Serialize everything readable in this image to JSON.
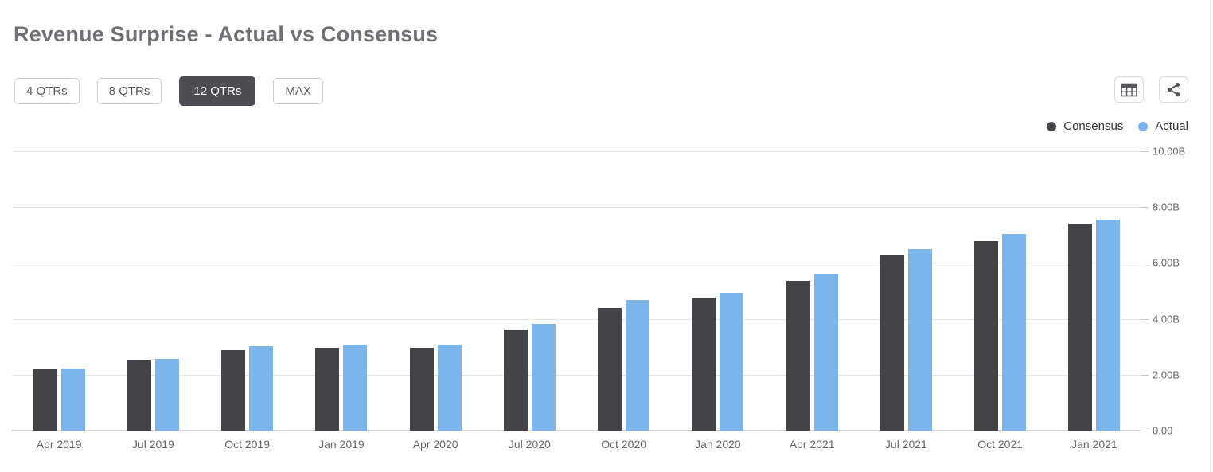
{
  "header": {
    "title": "Revenue Surprise - Actual vs Consensus"
  },
  "toolbar": {
    "range_buttons": [
      {
        "label": "4 QTRs",
        "selected": false
      },
      {
        "label": "8 QTRs",
        "selected": false
      },
      {
        "label": "12 QTRs",
        "selected": true
      },
      {
        "label": "MAX",
        "selected": false
      }
    ],
    "icons": [
      "data-table",
      "share"
    ]
  },
  "colors": {
    "consensus": "#434348",
    "actual": "#7cb5ec",
    "selected_button_bg": "#4d4d52",
    "grid": "#e6e6e6",
    "axis_text": "#666666"
  },
  "chart_data": {
    "type": "bar",
    "title": "Revenue Surprise - Actual vs Consensus",
    "categories": [
      "Apr 2019",
      "Jul 2019",
      "Oct 2019",
      "Jan 2019",
      "Apr 2020",
      "Jul 2020",
      "Oct 2020",
      "Jan 2020",
      "Apr 2021",
      "Jul 2021",
      "Oct 2021",
      "Jan 2021"
    ],
    "series": [
      {
        "name": "Consensus",
        "color": "#434348",
        "values": [
          2.18,
          2.53,
          2.88,
          2.96,
          2.95,
          3.63,
          4.4,
          4.76,
          5.36,
          6.29,
          6.77,
          7.41
        ]
      },
      {
        "name": "Actual",
        "color": "#7cb5ec",
        "values": [
          2.22,
          2.57,
          3.01,
          3.07,
          3.07,
          3.82,
          4.67,
          4.94,
          5.6,
          6.49,
          7.04,
          7.56
        ]
      }
    ],
    "value_unit": "B",
    "ylim": [
      0,
      10
    ],
    "yticks": [
      {
        "value": 10,
        "label": "10.00B"
      },
      {
        "value": 8,
        "label": "8.00B"
      },
      {
        "value": 6,
        "label": "6.00B"
      },
      {
        "value": 4,
        "label": "4.00B"
      },
      {
        "value": 2,
        "label": "2.00B"
      },
      {
        "value": 0,
        "label": "0.00"
      }
    ],
    "grid": true,
    "legend_position": "top-right",
    "legend": [
      "Consensus",
      "Actual"
    ]
  }
}
